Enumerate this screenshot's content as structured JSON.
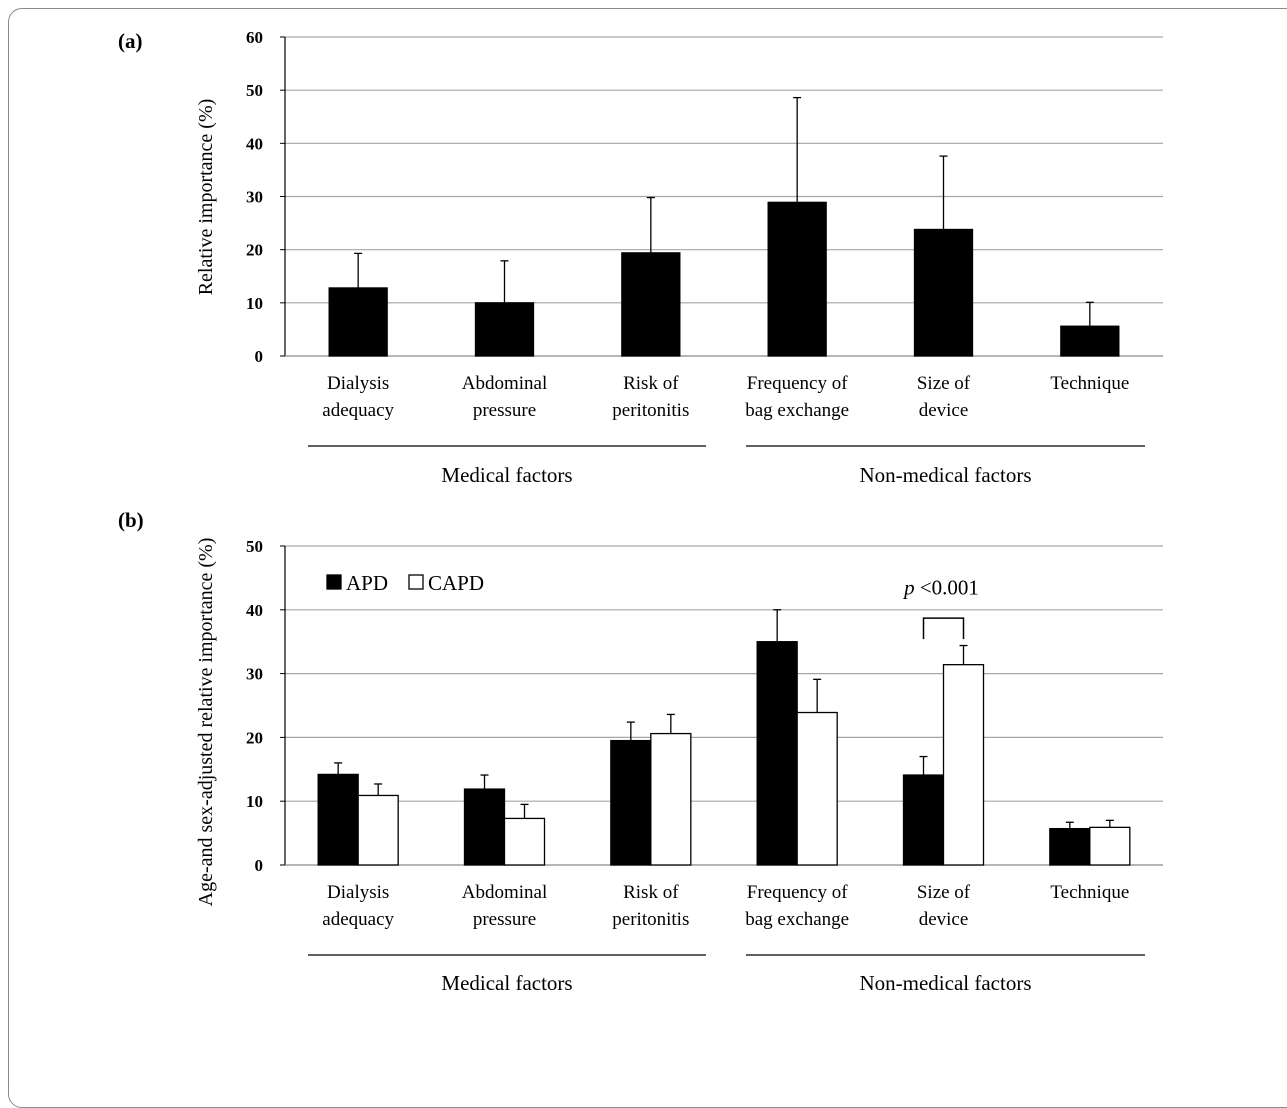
{
  "chart_data": [
    {
      "panel": "(a)",
      "type": "bar",
      "ylabel": "Relative importance (%)",
      "ylim": [
        0,
        60
      ],
      "yticks": [
        0,
        10,
        20,
        30,
        40,
        50,
        60
      ],
      "grid": true,
      "categories": [
        [
          "Dialysis",
          "adequacy"
        ],
        [
          "Abdominal",
          "pressure"
        ],
        [
          "Risk of",
          "peritonitis"
        ],
        [
          "Frequency of",
          "bag exchange"
        ],
        [
          "Size of",
          "device"
        ],
        [
          "Technique"
        ]
      ],
      "groups": [
        {
          "label": "Medical factors",
          "categories": [
            0,
            1,
            2
          ]
        },
        {
          "label": "Non-medical factors",
          "categories": [
            3,
            4,
            5
          ]
        }
      ],
      "series": [
        {
          "color": "#000000",
          "values": [
            12.8,
            10.0,
            19.4,
            28.9,
            23.8,
            5.6
          ],
          "errors": [
            6.5,
            7.9,
            10.4,
            19.7,
            13.8,
            4.5
          ]
        }
      ]
    },
    {
      "panel": "(b)",
      "type": "bar",
      "ylabel": "Age-and sex-adjusted relative importance (%)",
      "ylim": [
        0,
        50
      ],
      "yticks": [
        0,
        10,
        20,
        30,
        40,
        50
      ],
      "grid": true,
      "legend_position": "top-left",
      "categories": [
        [
          "Dialysis",
          "adequacy"
        ],
        [
          "Abdominal",
          "pressure"
        ],
        [
          "Risk of",
          "peritonitis"
        ],
        [
          "Frequency of",
          "bag exchange"
        ],
        [
          "Size of",
          "device"
        ],
        [
          "Technique"
        ]
      ],
      "groups": [
        {
          "label": "Medical factors",
          "categories": [
            0,
            1,
            2
          ]
        },
        {
          "label": "Non-medical factors",
          "categories": [
            3,
            4,
            5
          ]
        }
      ],
      "series": [
        {
          "name": "APD",
          "legend_symbol": "■",
          "color": "#000000",
          "values": [
            14.2,
            11.9,
            19.5,
            35.0,
            14.1,
            5.7
          ],
          "errors": [
            1.8,
            2.2,
            2.9,
            5.0,
            2.9,
            1.0
          ]
        },
        {
          "name": "CAPD",
          "legend_symbol": "□",
          "color": "#ffffff",
          "values": [
            10.9,
            7.3,
            20.6,
            23.9,
            31.4,
            5.9
          ],
          "errors": [
            1.8,
            2.2,
            3.0,
            5.2,
            3.0,
            1.1
          ]
        }
      ],
      "annotation": {
        "italic": "p",
        "text": " <0.001",
        "category": 4
      }
    }
  ]
}
